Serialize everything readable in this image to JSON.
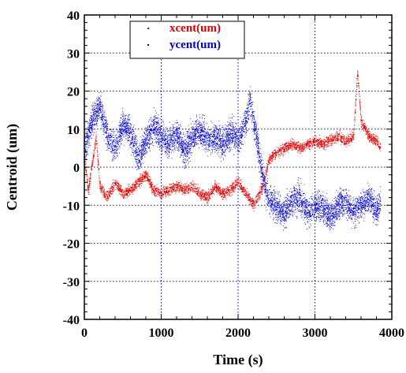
{
  "chart_data": {
    "type": "scatter",
    "xlabel": "Time (s)",
    "ylabel": "Centroid (um)",
    "xlim": [
      0,
      4000
    ],
    "ylim": [
      -40,
      40
    ],
    "x_ticks": [
      0,
      1000,
      2000,
      3000,
      4000
    ],
    "y_ticks": [
      -40,
      -30,
      -20,
      -10,
      0,
      10,
      20,
      30,
      40
    ],
    "grid": true,
    "grid_style": "dotted",
    "legend_position": "top-center",
    "series": [
      {
        "name": "xcent(um)",
        "color": "#e00000",
        "approx_points": [
          {
            "x": 0,
            "y": 2
          },
          {
            "x": 50,
            "y": -6
          },
          {
            "x": 100,
            "y": 1
          },
          {
            "x": 150,
            "y": 8
          },
          {
            "x": 200,
            "y": -5
          },
          {
            "x": 300,
            "y": -8
          },
          {
            "x": 400,
            "y": -4
          },
          {
            "x": 500,
            "y": -7
          },
          {
            "x": 600,
            "y": -6
          },
          {
            "x": 700,
            "y": -4
          },
          {
            "x": 800,
            "y": -2
          },
          {
            "x": 900,
            "y": -6
          },
          {
            "x": 1000,
            "y": -7
          },
          {
            "x": 1100,
            "y": -6
          },
          {
            "x": 1200,
            "y": -5
          },
          {
            "x": 1300,
            "y": -6
          },
          {
            "x": 1400,
            "y": -5
          },
          {
            "x": 1500,
            "y": -7
          },
          {
            "x": 1600,
            "y": -8
          },
          {
            "x": 1700,
            "y": -5
          },
          {
            "x": 1800,
            "y": -7
          },
          {
            "x": 1900,
            "y": -6
          },
          {
            "x": 2000,
            "y": -4
          },
          {
            "x": 2100,
            "y": -7
          },
          {
            "x": 2200,
            "y": -10
          },
          {
            "x": 2300,
            "y": -6
          },
          {
            "x": 2400,
            "y": 2
          },
          {
            "x": 2500,
            "y": 4
          },
          {
            "x": 2600,
            "y": 5
          },
          {
            "x": 2700,
            "y": 6
          },
          {
            "x": 2800,
            "y": 5
          },
          {
            "x": 2900,
            "y": 6
          },
          {
            "x": 3000,
            "y": 7
          },
          {
            "x": 3100,
            "y": 6
          },
          {
            "x": 3200,
            "y": 7
          },
          {
            "x": 3300,
            "y": 8
          },
          {
            "x": 3400,
            "y": 7
          },
          {
            "x": 3500,
            "y": 8
          },
          {
            "x": 3550,
            "y": 25
          },
          {
            "x": 3600,
            "y": 12
          },
          {
            "x": 3700,
            "y": 8
          },
          {
            "x": 3800,
            "y": 7
          },
          {
            "x": 3850,
            "y": 5
          }
        ]
      },
      {
        "name": "ycent(um)",
        "color": "#0000d0",
        "approx_points": [
          {
            "x": 0,
            "y": 5
          },
          {
            "x": 100,
            "y": 12
          },
          {
            "x": 200,
            "y": 16
          },
          {
            "x": 300,
            "y": 8
          },
          {
            "x": 400,
            "y": 5
          },
          {
            "x": 500,
            "y": 11
          },
          {
            "x": 600,
            "y": 9
          },
          {
            "x": 700,
            "y": 2
          },
          {
            "x": 800,
            "y": 7
          },
          {
            "x": 900,
            "y": 11
          },
          {
            "x": 1000,
            "y": 8
          },
          {
            "x": 1100,
            "y": 6
          },
          {
            "x": 1200,
            "y": 9
          },
          {
            "x": 1300,
            "y": 4
          },
          {
            "x": 1400,
            "y": 8
          },
          {
            "x": 1500,
            "y": 10
          },
          {
            "x": 1600,
            "y": 7
          },
          {
            "x": 1700,
            "y": 8
          },
          {
            "x": 1800,
            "y": 6
          },
          {
            "x": 1900,
            "y": 9
          },
          {
            "x": 2000,
            "y": 7
          },
          {
            "x": 2100,
            "y": 12
          },
          {
            "x": 2150,
            "y": 18
          },
          {
            "x": 2250,
            "y": 6
          },
          {
            "x": 2350,
            "y": -6
          },
          {
            "x": 2450,
            "y": -10
          },
          {
            "x": 2600,
            "y": -12
          },
          {
            "x": 2700,
            "y": -9
          },
          {
            "x": 2800,
            "y": -8
          },
          {
            "x": 2900,
            "y": -12
          },
          {
            "x": 3000,
            "y": -10
          },
          {
            "x": 3100,
            "y": -11
          },
          {
            "x": 3200,
            "y": -13
          },
          {
            "x": 3300,
            "y": -10
          },
          {
            "x": 3400,
            "y": -9
          },
          {
            "x": 3500,
            "y": -12
          },
          {
            "x": 3600,
            "y": -10
          },
          {
            "x": 3700,
            "y": -8
          },
          {
            "x": 3800,
            "y": -12
          },
          {
            "x": 3850,
            "y": -9
          }
        ]
      }
    ]
  }
}
